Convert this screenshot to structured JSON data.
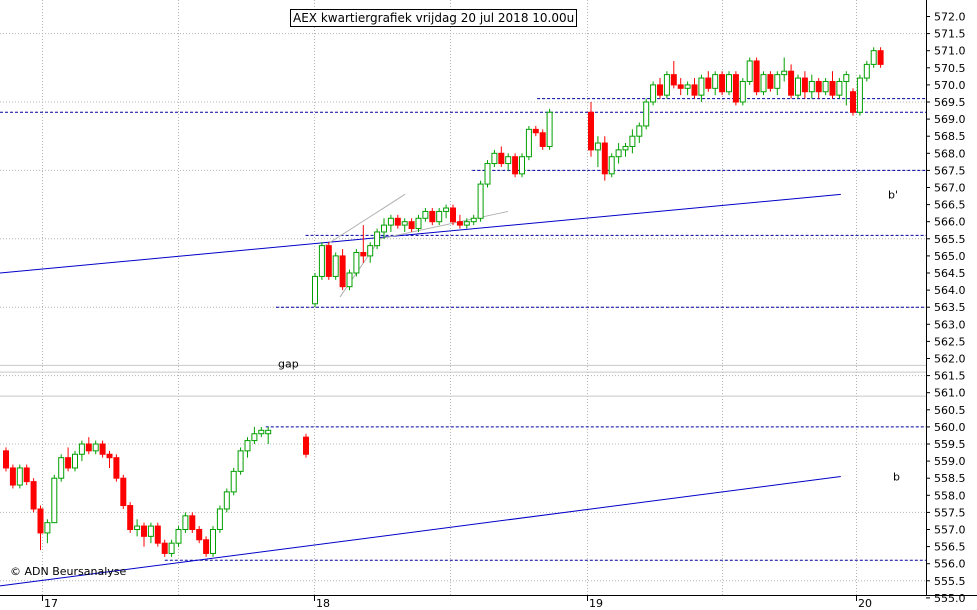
{
  "chart_data": {
    "type": "candlestick",
    "title": "AEX kwartiergrafiek vrijdag 20 jul 2018 10.00u",
    "y_range": [
      554.5,
      572.5
    ],
    "y_ticks": [
      "572.0",
      "571.5",
      "571.0",
      "570.5",
      "570.0",
      "569.5",
      "569.0",
      "568.5",
      "568.0",
      "567.5",
      "567.0",
      "566.5",
      "566.0",
      "565.5",
      "565.0",
      "564.5",
      "564.0",
      "563.5",
      "563.0",
      "562.5",
      "562.0",
      "561.5",
      "561.0",
      "560.5",
      "560.0",
      "559.5",
      "559.0",
      "558.5",
      "558.0",
      "557.5",
      "557.0",
      "556.5",
      "556.0",
      "555.5",
      "555.0"
    ],
    "x_labels": [
      "17",
      "18",
      "19",
      "20"
    ],
    "colors": {
      "up": "#00a000",
      "down": "#ff0000",
      "trend": "#0000c8",
      "hline": "#0000a0",
      "support": "#000000",
      "grid": "#b4b4b4"
    },
    "annotations": [
      {
        "text": "gap"
      },
      {
        "text": "b'"
      },
      {
        "text": "b"
      }
    ],
    "copyright": "© ADN Beursanalyse",
    "sessions": [
      {
        "day": "17",
        "candles": [
          [
            559.3,
            559.4,
            558.7,
            558.8
          ],
          [
            558.8,
            558.9,
            558.2,
            558.3
          ],
          [
            558.3,
            558.9,
            558.2,
            558.8
          ],
          [
            558.8,
            558.9,
            558.3,
            558.4
          ],
          [
            558.4,
            558.5,
            557.5,
            557.6
          ],
          [
            557.6,
            557.7,
            556.4,
            556.9
          ],
          [
            556.9,
            557.3,
            556.6,
            557.2
          ],
          [
            557.2,
            558.6,
            557.2,
            558.5
          ],
          [
            558.5,
            559.2,
            558.4,
            559.1
          ],
          [
            559.1,
            559.4,
            558.7,
            558.8
          ],
          [
            558.8,
            559.3,
            558.7,
            559.2
          ],
          [
            559.2,
            559.6,
            559.0,
            559.5
          ],
          [
            559.5,
            559.7,
            559.2,
            559.3
          ],
          [
            559.3,
            559.6,
            559.2,
            559.5
          ],
          [
            559.5,
            559.6,
            559.1,
            559.2
          ],
          [
            559.2,
            559.3,
            558.8,
            559.1
          ],
          [
            559.1,
            559.2,
            558.4,
            558.5
          ],
          [
            558.5,
            558.6,
            557.6,
            557.7
          ],
          [
            557.7,
            557.8,
            556.9,
            557.0
          ],
          [
            557.0,
            557.3,
            556.8,
            557.1
          ],
          [
            557.1,
            557.2,
            556.5,
            556.8
          ],
          [
            556.8,
            557.2,
            556.6,
            557.1
          ],
          [
            557.1,
            557.2,
            556.5,
            556.6
          ],
          [
            556.6,
            556.7,
            556.2,
            556.3
          ],
          [
            556.3,
            556.7,
            556.2,
            556.6
          ],
          [
            556.6,
            557.1,
            556.5,
            557.0
          ],
          [
            557.0,
            557.5,
            556.9,
            557.4
          ],
          [
            557.4,
            557.5,
            556.9,
            557.0
          ],
          [
            557.0,
            557.1,
            556.6,
            556.7
          ],
          [
            556.7,
            556.8,
            556.2,
            556.3
          ],
          [
            556.3,
            557.1,
            556.2,
            557.0
          ],
          [
            557.0,
            557.7,
            556.9,
            557.6
          ],
          [
            557.6,
            558.2,
            557.5,
            558.1
          ],
          [
            558.1,
            558.8,
            558.0,
            558.7
          ],
          [
            558.7,
            559.4,
            558.6,
            559.3
          ],
          [
            559.3,
            559.7,
            559.1,
            559.6
          ],
          [
            559.6,
            560.0,
            559.5,
            559.8
          ],
          [
            559.8,
            560.0,
            559.7,
            559.9
          ],
          [
            559.8,
            560.0,
            559.5,
            559.9
          ]
        ]
      },
      {
        "day": "18",
        "candles": [
          [
            559.7,
            559.8,
            559.1,
            559.2
          ],
          [
            563.6,
            564.5,
            563.5,
            564.4
          ],
          [
            564.4,
            565.4,
            564.3,
            565.3
          ],
          [
            565.3,
            565.4,
            564.3,
            564.4
          ],
          [
            564.4,
            565.1,
            564.3,
            565.0
          ],
          [
            565.0,
            565.2,
            564.0,
            564.1
          ],
          [
            564.1,
            564.6,
            564.0,
            564.5
          ],
          [
            564.5,
            565.2,
            564.4,
            565.1
          ],
          [
            565.1,
            565.9,
            564.8,
            565.0
          ],
          [
            565.0,
            565.4,
            564.8,
            565.3
          ],
          [
            565.3,
            565.8,
            565.2,
            565.7
          ],
          [
            565.7,
            566.1,
            565.5,
            565.9
          ],
          [
            565.9,
            566.2,
            565.7,
            566.1
          ],
          [
            566.1,
            566.2,
            565.8,
            565.9
          ],
          [
            565.9,
            566.1,
            565.7,
            566.0
          ],
          [
            566.0,
            566.1,
            565.7,
            565.8
          ],
          [
            565.8,
            566.2,
            565.7,
            566.1
          ],
          [
            566.1,
            566.4,
            566.0,
            566.3
          ],
          [
            566.3,
            566.4,
            565.9,
            566.0
          ],
          [
            566.0,
            566.4,
            565.9,
            566.3
          ],
          [
            566.3,
            566.5,
            566.1,
            566.4
          ],
          [
            566.4,
            566.5,
            565.9,
            566.0
          ],
          [
            566.0,
            566.2,
            565.8,
            565.9
          ],
          [
            565.9,
            566.1,
            565.8,
            566.0
          ],
          [
            566.0,
            566.2,
            565.9,
            566.1
          ],
          [
            566.1,
            567.2,
            566.0,
            567.1
          ],
          [
            567.1,
            567.8,
            567.0,
            567.7
          ],
          [
            567.7,
            568.1,
            567.6,
            568.0
          ],
          [
            568.0,
            568.2,
            567.6,
            567.7
          ],
          [
            567.7,
            568.0,
            567.5,
            567.9
          ],
          [
            567.9,
            568.0,
            567.3,
            567.4
          ],
          [
            567.4,
            568.0,
            567.3,
            567.9
          ],
          [
            567.9,
            568.8,
            567.8,
            568.7
          ],
          [
            568.7,
            568.8,
            568.5,
            568.6
          ],
          [
            568.6,
            568.7,
            568.1,
            568.2
          ],
          [
            568.2,
            569.3,
            568.1,
            569.2
          ]
        ]
      },
      {
        "day": "19",
        "candles": [
          [
            569.2,
            569.5,
            567.9,
            568.1
          ],
          [
            568.1,
            568.5,
            567.6,
            568.3
          ],
          [
            568.3,
            568.5,
            567.2,
            567.4
          ],
          [
            567.4,
            568.0,
            567.3,
            567.9
          ],
          [
            567.9,
            568.3,
            567.7,
            568.1
          ],
          [
            568.1,
            568.3,
            567.9,
            568.2
          ],
          [
            568.2,
            568.7,
            568.0,
            568.5
          ],
          [
            568.5,
            568.9,
            568.3,
            568.8
          ],
          [
            568.8,
            569.6,
            568.7,
            569.5
          ],
          [
            569.5,
            570.1,
            569.4,
            570.0
          ],
          [
            570.0,
            570.2,
            569.6,
            569.7
          ],
          [
            569.7,
            570.4,
            569.6,
            570.3
          ],
          [
            570.3,
            570.7,
            569.9,
            570.0
          ],
          [
            570.0,
            570.2,
            569.7,
            569.9
          ],
          [
            569.9,
            570.1,
            569.7,
            570.0
          ],
          [
            570.0,
            570.2,
            569.6,
            569.7
          ],
          [
            569.7,
            570.3,
            569.5,
            570.2
          ],
          [
            570.2,
            570.4,
            569.8,
            569.9
          ],
          [
            569.9,
            570.4,
            569.7,
            570.3
          ],
          [
            570.3,
            570.4,
            569.7,
            569.8
          ],
          [
            569.8,
            570.4,
            569.7,
            570.3
          ],
          [
            570.3,
            570.4,
            569.4,
            569.5
          ],
          [
            569.5,
            570.2,
            569.4,
            570.1
          ],
          [
            570.1,
            570.8,
            570.0,
            570.7
          ],
          [
            570.7,
            570.8,
            569.7,
            569.8
          ],
          [
            569.8,
            570.4,
            569.7,
            570.3
          ],
          [
            570.3,
            570.4,
            569.8,
            569.9
          ],
          [
            569.9,
            570.4,
            569.7,
            570.3
          ],
          [
            570.3,
            570.8,
            570.1,
            570.4
          ],
          [
            570.4,
            570.6,
            569.6,
            569.7
          ],
          [
            569.7,
            570.3,
            569.6,
            570.2
          ],
          [
            570.2,
            570.4,
            569.6,
            569.8
          ],
          [
            569.8,
            570.3,
            569.6,
            570.1
          ],
          [
            570.1,
            570.2,
            569.6,
            569.8
          ],
          [
            569.8,
            570.2,
            569.7,
            570.1
          ],
          [
            570.1,
            570.4,
            569.6,
            569.7
          ],
          [
            569.7,
            570.2,
            569.6,
            570.1
          ],
          [
            570.1,
            570.4,
            569.4,
            570.3
          ]
        ]
      },
      {
        "day": "20",
        "candles": [
          [
            569.8,
            569.9,
            569.1,
            569.2
          ],
          [
            569.2,
            570.3,
            569.1,
            570.2
          ],
          [
            570.2,
            570.7,
            570.1,
            570.6
          ],
          [
            570.6,
            571.1,
            570.5,
            571.0
          ],
          [
            571.0,
            571.1,
            570.5,
            570.6
          ]
        ]
      }
    ],
    "hlines": [
      {
        "y": 569.6,
        "x_from": 0.58
      },
      {
        "y": 569.2,
        "x_from": 0.0
      },
      {
        "y": 567.5,
        "x_from": 0.51
      },
      {
        "y": 565.6,
        "x_from": 0.33
      },
      {
        "y": 563.5,
        "x_from": 0.298
      },
      {
        "y": 560.0,
        "x_from": 0.287
      },
      {
        "y": 556.1,
        "x_from": 0.178
      }
    ],
    "trendlines": [
      {
        "name": "b'",
        "from": [
          0.0,
          564.5
        ],
        "to": [
          0.908,
          566.8
        ]
      },
      {
        "name": "b",
        "from": [
          0.0,
          555.35
        ],
        "to": [
          0.908,
          558.55
        ]
      }
    ],
    "support_lines": [
      {
        "y": 560.0
      },
      {
        "y": 563.5
      }
    ]
  }
}
